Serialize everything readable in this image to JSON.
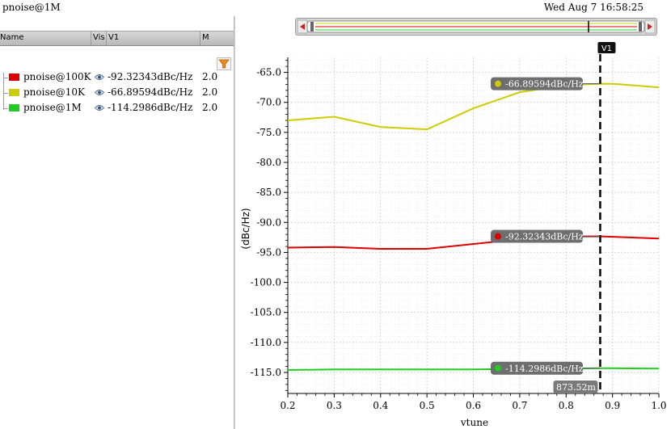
{
  "window": {
    "title": "pnoise@1M",
    "datetime": "Wed Aug 7 16:58:25"
  },
  "table": {
    "headers": {
      "name": "Name",
      "vis": "Vis",
      "v1": "V1",
      "m": "M"
    },
    "rows": [
      {
        "name": "pnoise@100K",
        "value": "-92.32343dBc/Hz",
        "m": "2.0",
        "color": "#dd0000"
      },
      {
        "name": "pnoise@10K",
        "value": "-66.89594dBc/Hz",
        "m": "2.0",
        "color": "#cccc00"
      },
      {
        "name": "pnoise@1M",
        "value": "-114.2986dBc/Hz",
        "m": "2.0",
        "color": "#22cc22"
      }
    ]
  },
  "icons": {
    "filter": "filter-icon",
    "visibility": "eye-icon",
    "scroll_left": "arrow-left-icon",
    "scroll_right": "arrow-right-icon"
  },
  "chart_data": {
    "type": "line",
    "xlabel": "vtune",
    "ylabel": "(dBc/Hz)",
    "xlim": [
      0.2,
      1.0
    ],
    "ylim": [
      -118.5,
      -62.5
    ],
    "xticks": [
      "0.2",
      "0.3",
      "0.4",
      "0.5",
      "0.6",
      "0.7",
      "0.8",
      "0.9",
      "1.0"
    ],
    "yticks": [
      "-65.0",
      "-70.0",
      "-75.0",
      "-80.0",
      "-85.0",
      "-90.0",
      "-95.0",
      "-100.0",
      "-105.0",
      "-110.0",
      "-115.0"
    ],
    "grid": true,
    "series": [
      {
        "name": "pnoise@100K",
        "color": "#dd0000",
        "x": [
          0.2,
          0.3,
          0.4,
          0.5,
          0.6,
          0.7,
          0.8,
          0.873,
          0.9,
          1.0
        ],
        "y": [
          -94.2,
          -94.1,
          -94.4,
          -94.4,
          -93.6,
          -92.8,
          -92.35,
          -92.32,
          -92.4,
          -92.7
        ]
      },
      {
        "name": "pnoise@10K",
        "color": "#cccc00",
        "x": [
          0.2,
          0.3,
          0.4,
          0.5,
          0.6,
          0.7,
          0.8,
          0.873,
          0.9,
          1.0
        ],
        "y": [
          -73.0,
          -72.4,
          -74.1,
          -74.5,
          -71.0,
          -68.3,
          -67.1,
          -66.9,
          -66.9,
          -67.5
        ]
      },
      {
        "name": "pnoise@1M",
        "color": "#22cc22",
        "x": [
          0.2,
          0.3,
          0.4,
          0.5,
          0.6,
          0.7,
          0.8,
          0.873,
          0.9,
          1.0
        ],
        "y": [
          -114.6,
          -114.5,
          -114.5,
          -114.5,
          -114.5,
          -114.4,
          -114.35,
          -114.3,
          -114.3,
          -114.35
        ]
      }
    ],
    "marker": {
      "name": "V1",
      "x": 0.87352,
      "x_label": "873.52m",
      "labels": [
        {
          "series": "pnoise@10K",
          "y": -66.89594,
          "text": "-66.89594dBc/Hz",
          "color": "#cccc00"
        },
        {
          "series": "pnoise@100K",
          "y": -92.32343,
          "text": "-92.32343dBc/Hz",
          "color": "#dd0000"
        },
        {
          "series": "pnoise@1M",
          "y": -114.2986,
          "text": "-114.2986dBc/Hz",
          "color": "#22cc22"
        }
      ]
    }
  }
}
